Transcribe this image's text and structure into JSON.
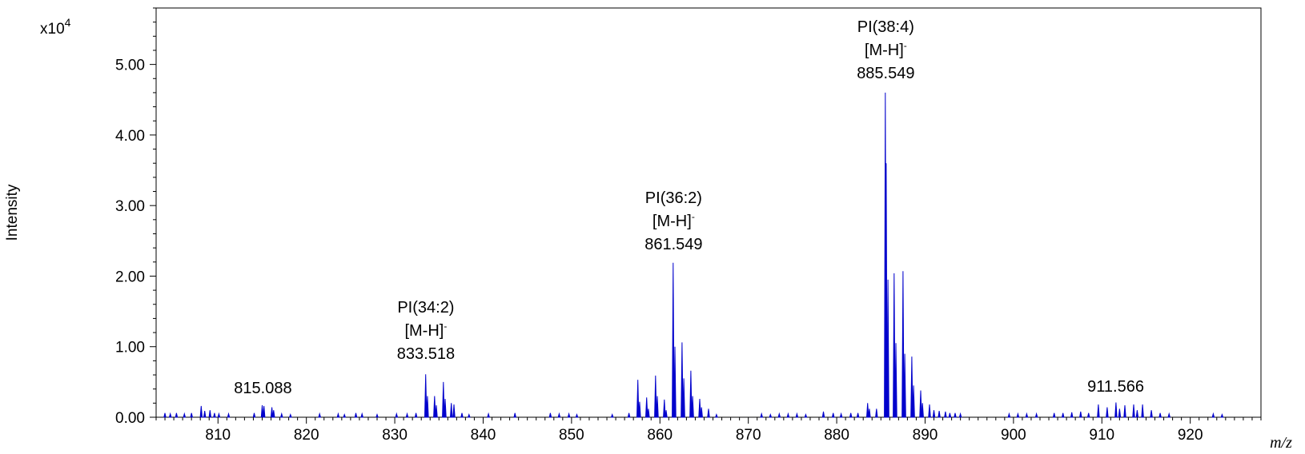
{
  "chart_data": {
    "type": "bar",
    "title": "",
    "xlabel": "m/z",
    "ylabel": "Intensity",
    "y_scale_label": {
      "prefix": "x10",
      "exponent": "4"
    },
    "xlim": [
      803,
      928
    ],
    "ylim": [
      0,
      5.8
    ],
    "y_unit_multiplier": 10000,
    "grid": false,
    "colors": {
      "peaks": "#0000cc",
      "axis": "#000000"
    },
    "x_ticks": [
      810,
      820,
      830,
      840,
      850,
      860,
      870,
      880,
      890,
      900,
      910,
      920
    ],
    "x_tick_labels": [
      "810",
      "820",
      "830",
      "840",
      "850",
      "860",
      "870",
      "880",
      "890",
      "900",
      "910",
      "920"
    ],
    "y_ticks": [
      0,
      1,
      2,
      3,
      4,
      5
    ],
    "y_tick_labels": [
      "0.00",
      "1.00",
      "2.00",
      "3.00",
      "4.00",
      "5.00"
    ],
    "peaks": [
      {
        "x": 804.0,
        "y": 0.06
      },
      {
        "x": 804.6,
        "y": 0.05
      },
      {
        "x": 805.3,
        "y": 0.06
      },
      {
        "x": 806.2,
        "y": 0.05
      },
      {
        "x": 807.0,
        "y": 0.06
      },
      {
        "x": 808.1,
        "y": 0.16
      },
      {
        "x": 808.5,
        "y": 0.09
      },
      {
        "x": 809.1,
        "y": 0.1
      },
      {
        "x": 809.6,
        "y": 0.06
      },
      {
        "x": 810.1,
        "y": 0.05
      },
      {
        "x": 811.2,
        "y": 0.05
      },
      {
        "x": 814.1,
        "y": 0.06
      },
      {
        "x": 815.0,
        "y": 0.17
      },
      {
        "x": 815.2,
        "y": 0.16
      },
      {
        "x": 816.1,
        "y": 0.14
      },
      {
        "x": 816.3,
        "y": 0.1
      },
      {
        "x": 817.2,
        "y": 0.05
      },
      {
        "x": 818.2,
        "y": 0.04
      },
      {
        "x": 821.5,
        "y": 0.05
      },
      {
        "x": 823.6,
        "y": 0.05
      },
      {
        "x": 824.3,
        "y": 0.04
      },
      {
        "x": 825.6,
        "y": 0.06
      },
      {
        "x": 826.3,
        "y": 0.05
      },
      {
        "x": 828.0,
        "y": 0.04
      },
      {
        "x": 830.2,
        "y": 0.05
      },
      {
        "x": 831.4,
        "y": 0.05
      },
      {
        "x": 832.4,
        "y": 0.06
      },
      {
        "x": 833.5,
        "y": 0.61
      },
      {
        "x": 833.7,
        "y": 0.3
      },
      {
        "x": 834.5,
        "y": 0.3
      },
      {
        "x": 834.7,
        "y": 0.17
      },
      {
        "x": 835.5,
        "y": 0.5
      },
      {
        "x": 835.7,
        "y": 0.26
      },
      {
        "x": 836.4,
        "y": 0.2
      },
      {
        "x": 836.7,
        "y": 0.18
      },
      {
        "x": 837.6,
        "y": 0.06
      },
      {
        "x": 838.4,
        "y": 0.04
      },
      {
        "x": 840.6,
        "y": 0.05
      },
      {
        "x": 843.6,
        "y": 0.06
      },
      {
        "x": 847.6,
        "y": 0.06
      },
      {
        "x": 848.6,
        "y": 0.05
      },
      {
        "x": 849.7,
        "y": 0.05
      },
      {
        "x": 850.6,
        "y": 0.04
      },
      {
        "x": 854.6,
        "y": 0.04
      },
      {
        "x": 856.5,
        "y": 0.06
      },
      {
        "x": 857.5,
        "y": 0.53
      },
      {
        "x": 857.7,
        "y": 0.22
      },
      {
        "x": 858.5,
        "y": 0.28
      },
      {
        "x": 858.7,
        "y": 0.12
      },
      {
        "x": 859.5,
        "y": 0.59
      },
      {
        "x": 859.7,
        "y": 0.3
      },
      {
        "x": 860.5,
        "y": 0.25
      },
      {
        "x": 860.7,
        "y": 0.1
      },
      {
        "x": 861.5,
        "y": 2.19
      },
      {
        "x": 861.7,
        "y": 1.0
      },
      {
        "x": 862.5,
        "y": 1.06
      },
      {
        "x": 862.7,
        "y": 0.55
      },
      {
        "x": 863.5,
        "y": 0.66
      },
      {
        "x": 863.7,
        "y": 0.3
      },
      {
        "x": 864.5,
        "y": 0.26
      },
      {
        "x": 864.7,
        "y": 0.14
      },
      {
        "x": 865.5,
        "y": 0.12
      },
      {
        "x": 866.4,
        "y": 0.04
      },
      {
        "x": 871.5,
        "y": 0.05
      },
      {
        "x": 872.5,
        "y": 0.04
      },
      {
        "x": 873.5,
        "y": 0.05
      },
      {
        "x": 874.5,
        "y": 0.05
      },
      {
        "x": 875.5,
        "y": 0.05
      },
      {
        "x": 876.5,
        "y": 0.04
      },
      {
        "x": 878.5,
        "y": 0.08
      },
      {
        "x": 879.6,
        "y": 0.06
      },
      {
        "x": 880.5,
        "y": 0.05
      },
      {
        "x": 881.6,
        "y": 0.06
      },
      {
        "x": 882.4,
        "y": 0.06
      },
      {
        "x": 883.5,
        "y": 0.2
      },
      {
        "x": 883.7,
        "y": 0.12
      },
      {
        "x": 884.5,
        "y": 0.12
      },
      {
        "x": 885.5,
        "y": 4.6
      },
      {
        "x": 885.6,
        "y": 3.6
      },
      {
        "x": 885.8,
        "y": 1.95
      },
      {
        "x": 886.5,
        "y": 2.04
      },
      {
        "x": 886.7,
        "y": 1.05
      },
      {
        "x": 887.5,
        "y": 2.07
      },
      {
        "x": 887.7,
        "y": 0.9
      },
      {
        "x": 888.5,
        "y": 0.86
      },
      {
        "x": 888.7,
        "y": 0.45
      },
      {
        "x": 889.5,
        "y": 0.38
      },
      {
        "x": 889.7,
        "y": 0.2
      },
      {
        "x": 890.5,
        "y": 0.18
      },
      {
        "x": 891.0,
        "y": 0.1
      },
      {
        "x": 891.6,
        "y": 0.09
      },
      {
        "x": 892.3,
        "y": 0.08
      },
      {
        "x": 892.8,
        "y": 0.06
      },
      {
        "x": 893.4,
        "y": 0.06
      },
      {
        "x": 894.0,
        "y": 0.05
      },
      {
        "x": 899.5,
        "y": 0.05
      },
      {
        "x": 900.5,
        "y": 0.05
      },
      {
        "x": 901.5,
        "y": 0.05
      },
      {
        "x": 902.6,
        "y": 0.05
      },
      {
        "x": 904.6,
        "y": 0.06
      },
      {
        "x": 905.6,
        "y": 0.06
      },
      {
        "x": 906.6,
        "y": 0.07
      },
      {
        "x": 907.6,
        "y": 0.08
      },
      {
        "x": 908.5,
        "y": 0.06
      },
      {
        "x": 909.6,
        "y": 0.18
      },
      {
        "x": 910.6,
        "y": 0.14
      },
      {
        "x": 911.6,
        "y": 0.21
      },
      {
        "x": 912.0,
        "y": 0.12
      },
      {
        "x": 912.6,
        "y": 0.17
      },
      {
        "x": 913.6,
        "y": 0.18
      },
      {
        "x": 914.0,
        "y": 0.1
      },
      {
        "x": 914.6,
        "y": 0.18
      },
      {
        "x": 915.6,
        "y": 0.1
      },
      {
        "x": 916.6,
        "y": 0.06
      },
      {
        "x": 917.6,
        "y": 0.05
      },
      {
        "x": 922.6,
        "y": 0.05
      },
      {
        "x": 923.6,
        "y": 0.04
      }
    ],
    "annotations": [
      {
        "x": 815.088,
        "lines": [
          "815.088"
        ]
      },
      {
        "x": 833.518,
        "lines": [
          "PI(34:2)",
          "[M-H]-",
          "833.518"
        ]
      },
      {
        "x": 861.549,
        "lines": [
          "PI(36:2)",
          "[M-H]-",
          "861.549"
        ]
      },
      {
        "x": 885.549,
        "lines": [
          "PI(38:4)",
          "[M-H]-",
          "885.549"
        ]
      },
      {
        "x": 911.566,
        "lines": [
          "911.566"
        ]
      }
    ]
  }
}
